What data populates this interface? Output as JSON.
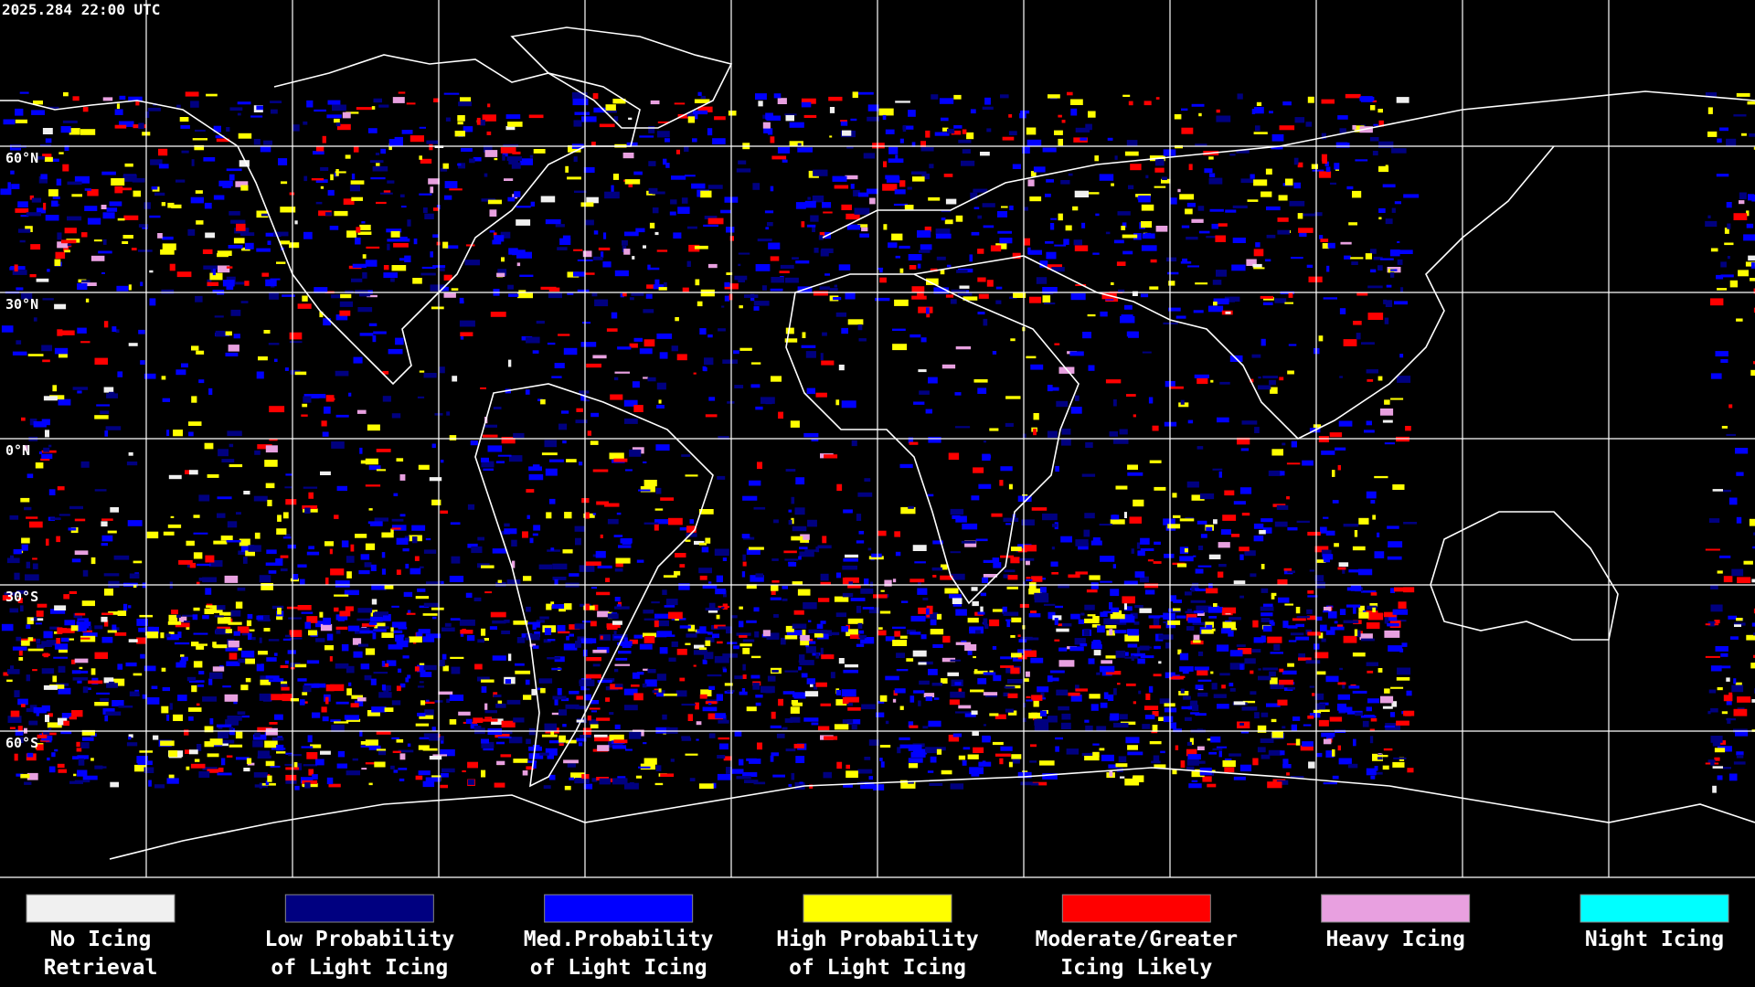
{
  "timestamp": "2025.284 22:00 UTC",
  "latitude_labels": [
    "60°N",
    "30°N",
    "0°N",
    "30°S",
    "60°S"
  ],
  "legend": [
    {
      "lines": [
        "No Icing",
        "Retrieval"
      ],
      "color": "#f0f0f0"
    },
    {
      "lines": [
        "Low Probability",
        "of Light Icing"
      ],
      "color": "#000080"
    },
    {
      "lines": [
        "Med.Probability",
        "of Light Icing"
      ],
      "color": "#0000ff"
    },
    {
      "lines": [
        "High Probability",
        "of Light Icing"
      ],
      "color": "#ffff00"
    },
    {
      "lines": [
        "Moderate/Greater",
        "Icing Likely"
      ],
      "color": "#ff0000"
    },
    {
      "lines": [
        "Heavy Icing"
      ],
      "color": "#e8a0e0"
    },
    {
      "lines": [
        "Night Icing"
      ],
      "color": "#00ffff"
    }
  ]
}
